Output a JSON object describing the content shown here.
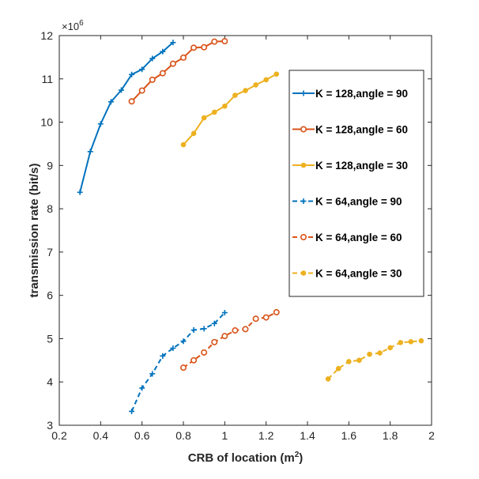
{
  "chart_data": {
    "type": "line",
    "title": "",
    "xlabel": "CRB of location (m",
    "xlabel_sup": "2",
    "xlabel_close": ")",
    "ylabel": "transmission rate (bit/s)",
    "y_multiplier_base": "×10",
    "y_multiplier_exp": "6",
    "xlim": [
      0.2,
      2
    ],
    "ylim": [
      3,
      12
    ],
    "xticks": [
      "0.2",
      "0.4",
      "0.6",
      "0.8",
      "1",
      "1.2",
      "1.4",
      "1.6",
      "1.8",
      "2"
    ],
    "xtick_values": [
      0.2,
      0.4,
      0.6,
      0.8,
      1.0,
      1.2,
      1.4,
      1.6,
      1.8,
      2.0
    ],
    "yticks": [
      "3",
      "4",
      "5",
      "6",
      "7",
      "8",
      "9",
      "10",
      "11",
      "12"
    ],
    "ytick_values": [
      3,
      4,
      5,
      6,
      7,
      8,
      9,
      10,
      11,
      12
    ],
    "grid": false,
    "legend_position": "right",
    "series": [
      {
        "name": "K = 128,angle = 90",
        "color": "#0072BD",
        "style": "solid",
        "marker": "plus",
        "x": [
          0.3,
          0.35,
          0.4,
          0.45,
          0.5,
          0.55,
          0.6,
          0.65,
          0.7,
          0.75
        ],
        "y": [
          8.38,
          9.32,
          9.96,
          10.47,
          10.74,
          11.1,
          11.22,
          11.47,
          11.63,
          11.84
        ]
      },
      {
        "name": "K = 128,angle = 60",
        "color": "#D95319",
        "style": "solid",
        "marker": "circle",
        "x": [
          0.55,
          0.6,
          0.65,
          0.7,
          0.75,
          0.8,
          0.85,
          0.9,
          0.95,
          1.0
        ],
        "y": [
          10.48,
          10.73,
          10.98,
          11.13,
          11.35,
          11.49,
          11.72,
          11.73,
          11.86,
          11.87
        ]
      },
      {
        "name": "K = 128,angle = 30",
        "color": "#EDB120",
        "style": "solid",
        "marker": "dot",
        "x": [
          0.8,
          0.85,
          0.9,
          0.95,
          1.0,
          1.05,
          1.1,
          1.15,
          1.2,
          1.25
        ],
        "y": [
          9.48,
          9.74,
          10.1,
          10.23,
          10.37,
          10.62,
          10.73,
          10.86,
          10.98,
          11.11
        ]
      },
      {
        "name": "K = 64,angle = 90",
        "color": "#0072BD",
        "style": "dashed",
        "marker": "plus",
        "x": [
          0.55,
          0.6,
          0.65,
          0.7,
          0.75,
          0.8,
          0.85,
          0.9,
          0.95,
          1.0
        ],
        "y": [
          3.32,
          3.86,
          4.19,
          4.6,
          4.78,
          4.94,
          5.2,
          5.23,
          5.35,
          5.6
        ]
      },
      {
        "name": "K = 64,angle = 60",
        "color": "#D95319",
        "style": "dashed",
        "marker": "circle",
        "x": [
          0.8,
          0.85,
          0.9,
          0.95,
          1.0,
          1.05,
          1.1,
          1.15,
          1.2,
          1.25
        ],
        "y": [
          4.33,
          4.5,
          4.68,
          4.92,
          5.06,
          5.19,
          5.22,
          5.46,
          5.49,
          5.61
        ]
      },
      {
        "name": "K = 64,angle = 30",
        "color": "#EDB120",
        "style": "dashed",
        "marker": "dot",
        "x": [
          1.5,
          1.55,
          1.6,
          1.65,
          1.7,
          1.75,
          1.8,
          1.85,
          1.9,
          1.95
        ],
        "y": [
          4.07,
          4.31,
          4.47,
          4.5,
          4.64,
          4.67,
          4.79,
          4.91,
          4.93,
          4.95
        ]
      }
    ]
  }
}
